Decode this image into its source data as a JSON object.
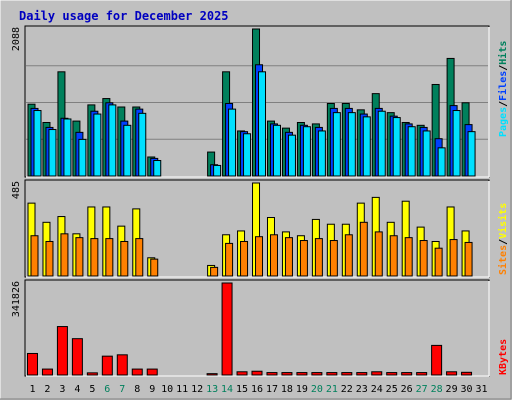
{
  "title": "Daily usage for December 2025",
  "colors": {
    "background": "#c0c0c0",
    "hits": "#00805c",
    "files": "#0040ff",
    "pages": "#00e0ff",
    "visits": "#ffff00",
    "sites": "#ff8000",
    "kbytes": "#ff0000",
    "weekend_day": "#00805c",
    "weekday": "#000000"
  },
  "legend": {
    "upper": [
      {
        "label": "Hits",
        "color": "#00805c"
      },
      {
        "label": "/",
        "color": "#000000"
      },
      {
        "label": "Files",
        "color": "#0040ff"
      },
      {
        "label": "/",
        "color": "#000000"
      },
      {
        "label": "Pages",
        "color": "#00e0ff"
      }
    ],
    "middle": [
      {
        "label": "Visits",
        "color": "#ffff00"
      },
      {
        "label": "/",
        "color": "#000000"
      },
      {
        "label": "Sites",
        "color": "#ff8000"
      }
    ],
    "lower": [
      {
        "label": "KBytes",
        "color": "#ff0000"
      }
    ]
  },
  "chart_data": {
    "type": "bar",
    "categories": [
      "1",
      "2",
      "3",
      "4",
      "5",
      "6",
      "7",
      "8",
      "9",
      "10",
      "11",
      "12",
      "13",
      "14",
      "15",
      "16",
      "17",
      "18",
      "19",
      "20",
      "21",
      "22",
      "23",
      "24",
      "25",
      "26",
      "27",
      "28",
      "29",
      "30",
      "31"
    ],
    "weekend_days": [
      "6",
      "7",
      "13",
      "14",
      "20",
      "21",
      "27",
      "28"
    ],
    "panels": [
      {
        "name": "hits-files-pages",
        "ymax_label": "2088",
        "ymax": 2088,
        "series": [
          {
            "name": "Hits",
            "values": [
              1020,
              760,
              1480,
              780,
              1010,
              1100,
              980,
              980,
              270,
              0,
              0,
              0,
              340,
              1480,
              640,
              2088,
              780,
              680,
              760,
              740,
              1030,
              1030,
              940,
              1170,
              900,
              760,
              720,
              1300,
              1670,
              1040,
              0
            ]
          },
          {
            "name": "Files",
            "values": [
              960,
              690,
              820,
              620,
              920,
              1040,
              780,
              950,
              250,
              0,
              0,
              0,
              160,
              1030,
              630,
              1580,
              740,
              620,
              720,
              690,
              960,
              960,
              880,
              960,
              850,
              740,
              690,
              530,
              1000,
              730,
              0
            ]
          },
          {
            "name": "Pages",
            "values": [
              930,
              660,
              810,
              520,
              880,
              1010,
              720,
              890,
              220,
              0,
              0,
              0,
              150,
              950,
              600,
              1480,
              720,
              580,
              700,
              640,
              900,
              900,
              840,
              920,
              830,
              700,
              640,
              400,
              930,
              630,
              0
            ]
          }
        ]
      },
      {
        "name": "visits-sites",
        "ymax_label": "485",
        "ymax": 485,
        "series": [
          {
            "name": "Visits",
            "values": [
              380,
              280,
              310,
              220,
              360,
              360,
              260,
              350,
              95,
              0,
              0,
              0,
              55,
              215,
              235,
              485,
              305,
              230,
              210,
              295,
              270,
              270,
              380,
              410,
              280,
              390,
              255,
              180,
              360,
              235,
              0
            ]
          },
          {
            "name": "Sites",
            "values": [
              210,
              180,
              220,
              200,
              195,
              195,
              180,
              195,
              88,
              0,
              0,
              0,
              45,
              170,
              180,
              205,
              215,
              200,
              185,
              195,
              185,
              215,
              280,
              230,
              210,
              200,
              185,
              145,
              190,
              175,
              0
            ]
          }
        ]
      },
      {
        "name": "kbytes",
        "ymax_label": "341826",
        "ymax": 341826,
        "series": [
          {
            "name": "KBytes",
            "values": [
              80000,
              22000,
              180000,
              135000,
              8000,
              70000,
              75000,
              22000,
              22000,
              0,
              0,
              0,
              5000,
              341826,
              12000,
              14000,
              9000,
              9000,
              9000,
              9000,
              9000,
              9000,
              9000,
              12000,
              9000,
              9000,
              9000,
              110000,
              12000,
              10000,
              0
            ]
          }
        ]
      }
    ]
  }
}
